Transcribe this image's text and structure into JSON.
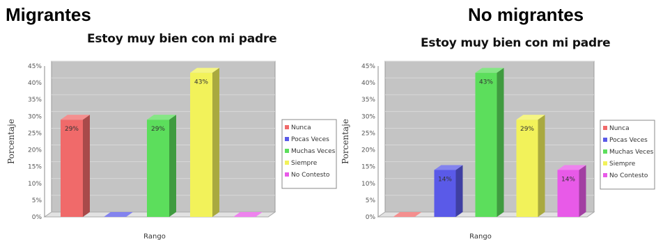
{
  "groups": {
    "left": "Migrantes",
    "right": "No migrantes"
  },
  "chart_data": [
    {
      "type": "bar",
      "title": "Estoy muy bien con mi padre",
      "xlabel": "Rango",
      "ylabel": "Porcentaje",
      "ylim": [
        0,
        45
      ],
      "yticks": [
        "0%",
        "5%",
        "10%",
        "15%",
        "20%",
        "25%",
        "30%",
        "35%",
        "40%",
        "45%"
      ],
      "categories": [
        "Nunca",
        "Pocas Veces",
        "Muchas Veces",
        "Siempre",
        "No Contesto"
      ],
      "values": [
        29,
        0,
        29,
        43,
        0
      ],
      "labels": [
        "29%",
        "",
        "29%",
        "43%",
        ""
      ],
      "colors": [
        "#f06a6a",
        "#5a5ae8",
        "#5cde5c",
        "#f2f25a",
        "#e85ae8"
      ],
      "grid": true,
      "legend": "right"
    },
    {
      "type": "bar",
      "title": "Estoy muy bien con mi padre",
      "xlabel": "Rango",
      "ylabel": "Porcentaje",
      "ylim": [
        0,
        45
      ],
      "yticks": [
        "0%",
        "5%",
        "10%",
        "15%",
        "20%",
        "25%",
        "30%",
        "35%",
        "40%",
        "45%"
      ],
      "categories": [
        "Nunca",
        "Pocas Veces",
        "Muchas Veces",
        "Siempre",
        "No Contesto"
      ],
      "values": [
        0,
        14,
        43,
        29,
        14
      ],
      "labels": [
        "",
        "14%",
        "43%",
        "29%",
        "14%"
      ],
      "colors": [
        "#f06a6a",
        "#5a5ae8",
        "#5cde5c",
        "#f2f25a",
        "#e85ae8"
      ],
      "grid": true,
      "legend": "right"
    }
  ]
}
